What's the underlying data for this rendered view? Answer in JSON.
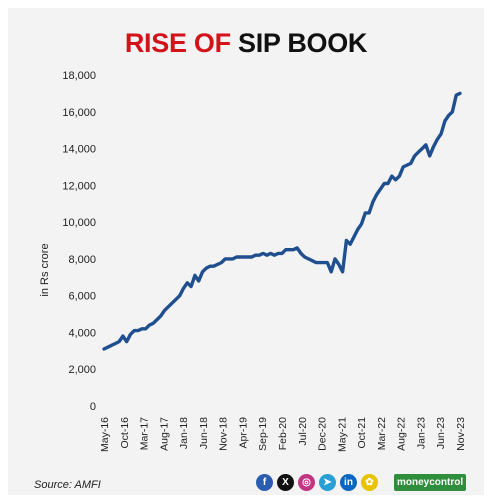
{
  "title": {
    "part1": "RISE OF",
    "part2": "SIP BOOK"
  },
  "source": "Source: AMFI",
  "brand": "moneycontrol",
  "social_icons": [
    "facebook-icon",
    "x-icon",
    "instagram-icon",
    "telegram-icon",
    "linkedin-icon",
    "snapchat-icon"
  ],
  "colors": {
    "title_red": "#d3121a",
    "line": "#1f4f8f",
    "brand_green": "#2f8e3b"
  },
  "chart_data": {
    "type": "line",
    "title": "RISE OF SIP BOOK",
    "ylabel": "in Rs crore",
    "xlabel": "",
    "ylim": [
      0,
      18000
    ],
    "yticks": [
      0,
      2000,
      4000,
      6000,
      8000,
      10000,
      12000,
      14000,
      16000,
      18000
    ],
    "ytick_labels": [
      "0",
      "2,000",
      "4,000",
      "6,000",
      "8,000",
      "10,000",
      "12,000",
      "14,000",
      "16,000",
      "18,000"
    ],
    "xtick_labels": [
      "May-16",
      "Oct-16",
      "Mar-17",
      "Aug-17",
      "Jan-18",
      "Jun-18",
      "Nov-18",
      "Apr-19",
      "Sep-19",
      "Feb-20",
      "Jul-20",
      "Dec-20",
      "May-21",
      "Oct-21",
      "Mar-22",
      "Aug-22",
      "Jan-23",
      "Jun-23",
      "Nov-23"
    ],
    "grid": false,
    "series": [
      {
        "values": [
          3100,
          3200,
          3300,
          3400,
          3500,
          3800,
          3500,
          3900,
          4100,
          4100,
          4200,
          4200,
          4400,
          4500,
          4700,
          4900,
          5200,
          5400,
          5600,
          5800,
          6000,
          6400,
          6700,
          6500,
          7100,
          6800,
          7300,
          7500,
          7600,
          7600,
          7700,
          7800,
          8000,
          8000,
          8000,
          8100,
          8100,
          8100,
          8100,
          8100,
          8200,
          8200,
          8300,
          8200,
          8300,
          8200,
          8300,
          8300,
          8500,
          8500,
          8500,
          8600,
          8300,
          8100,
          8000,
          7900,
          7800,
          7800,
          7800,
          7800,
          7300,
          8000,
          7700,
          7300,
          9000,
          8800,
          9200,
          9600,
          9900,
          10500,
          10500,
          11100,
          11500,
          11800,
          12100,
          12100,
          12500,
          12300,
          12500,
          13000,
          13100,
          13200,
          13600,
          13800,
          14000,
          14200,
          13600,
          14100,
          14500,
          14800,
          15500,
          15800,
          16000,
          16900,
          17000
        ]
      }
    ]
  }
}
